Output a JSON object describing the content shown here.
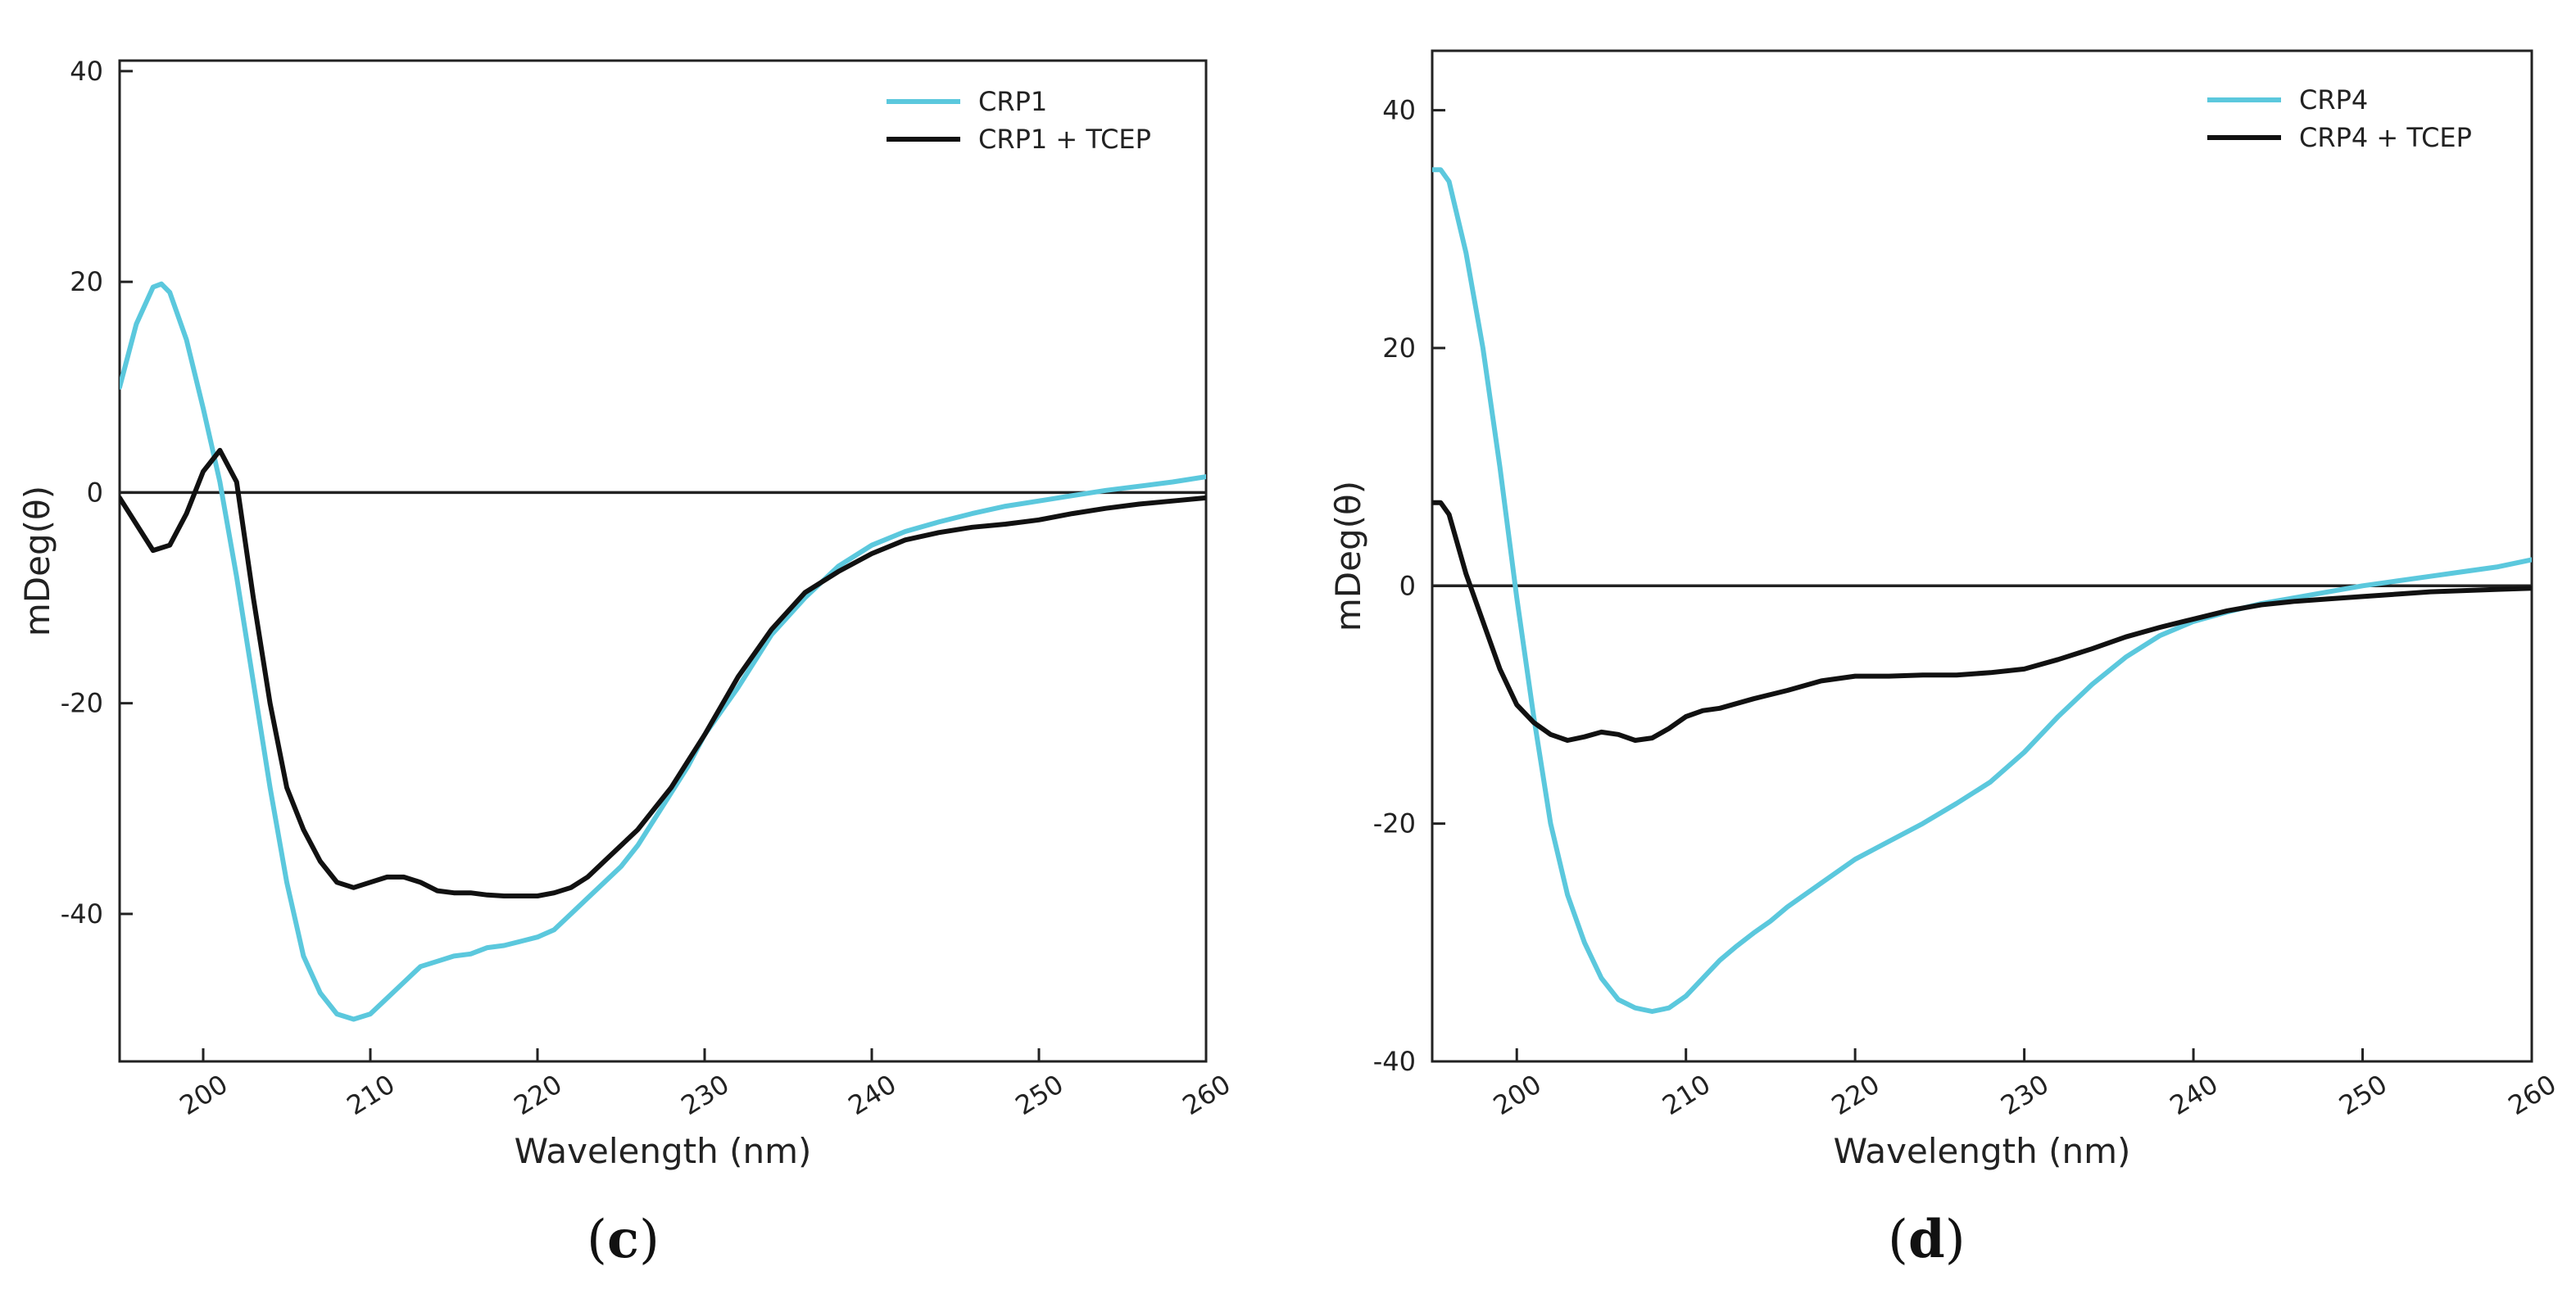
{
  "colors": {
    "line_blue": "#5BC8DD",
    "line_black": "#111111",
    "axis": "#222222"
  },
  "panels": [
    {
      "letter": "c",
      "letter_display_open": "(",
      "letter_display_close": ")"
    },
    {
      "letter": "d",
      "letter_display_open": "(",
      "letter_display_close": ")"
    }
  ],
  "chart_data": [
    {
      "type": "line",
      "panel": "c",
      "title": "",
      "xlabel": "Wavelength (nm)",
      "ylabel": "mDeg(θ)",
      "xlim": [
        195,
        260
      ],
      "ylim": [
        -54,
        41
      ],
      "xticks": [
        200,
        210,
        220,
        230,
        240,
        250,
        260
      ],
      "yticks": [
        40,
        20,
        0,
        -20,
        -40
      ],
      "zero_line": true,
      "legend": "top-right",
      "series": [
        {
          "name": "CRP1",
          "color": "#5BC8DD",
          "x": [
            195,
            196,
            197,
            197.5,
            198,
            199,
            200,
            201,
            202,
            203,
            204,
            205,
            206,
            207,
            208,
            209,
            210,
            211,
            212,
            213,
            214,
            215,
            216,
            217,
            218,
            219,
            220,
            221,
            222,
            223,
            224,
            225,
            226,
            227,
            228,
            229,
            230,
            232,
            234,
            236,
            238,
            240,
            242,
            244,
            246,
            248,
            250,
            252,
            254,
            256,
            258,
            260
          ],
          "y": [
            10,
            16,
            19.5,
            19.8,
            19,
            14.5,
            8,
            1,
            -8,
            -18,
            -28,
            -37,
            -44,
            -47.5,
            -49.5,
            -50,
            -49.5,
            -48,
            -46.5,
            -45,
            -44.5,
            -44,
            -43.8,
            -43.2,
            -43,
            -42.6,
            -42.2,
            -41.5,
            -40,
            -38.5,
            -37,
            -35.5,
            -33.5,
            -31,
            -28.5,
            -26,
            -23,
            -18.5,
            -13.5,
            -10,
            -7,
            -5,
            -3.7,
            -2.8,
            -2,
            -1.3,
            -0.8,
            -0.3,
            0.2,
            0.6,
            1.0,
            1.5
          ]
        },
        {
          "name": "CRP1 + TCEP",
          "color": "#111111",
          "x": [
            195,
            196,
            197,
            198,
            199,
            200,
            201,
            202,
            203,
            204,
            205,
            206,
            207,
            208,
            209,
            210,
            211,
            212,
            213,
            214,
            215,
            216,
            217,
            218,
            219,
            220,
            221,
            222,
            223,
            224,
            225,
            226,
            227,
            228,
            229,
            230,
            232,
            234,
            236,
            238,
            240,
            242,
            244,
            246,
            248,
            250,
            252,
            254,
            256,
            258,
            260
          ],
          "y": [
            -0.5,
            -3,
            -5.5,
            -5,
            -2,
            2,
            4,
            1,
            -10,
            -20,
            -28,
            -32,
            -35,
            -37,
            -37.5,
            -37,
            -36.5,
            -36.5,
            -37,
            -37.8,
            -38,
            -38,
            -38.2,
            -38.3,
            -38.3,
            -38.3,
            -38,
            -37.5,
            -36.5,
            -35,
            -33.5,
            -32,
            -30,
            -28,
            -25.5,
            -23,
            -17.5,
            -13,
            -9.5,
            -7.5,
            -5.8,
            -4.5,
            -3.8,
            -3.3,
            -3,
            -2.6,
            -2,
            -1.5,
            -1.1,
            -0.8,
            -0.5
          ]
        }
      ]
    },
    {
      "type": "line",
      "panel": "d",
      "title": "",
      "xlabel": "Wavelength (nm)",
      "ylabel": "mDeg(θ)",
      "xlim": [
        195,
        260
      ],
      "ylim": [
        -40,
        45
      ],
      "xticks": [
        200,
        210,
        220,
        230,
        240,
        250,
        260
      ],
      "yticks": [
        40,
        20,
        0,
        -20,
        -40
      ],
      "zero_line": true,
      "legend": "top-right",
      "series": [
        {
          "name": "CRP4",
          "color": "#5BC8DD",
          "x": [
            195,
            195.5,
            196,
            197,
            198,
            199,
            200,
            201,
            202,
            203,
            204,
            205,
            206,
            207,
            208,
            209,
            210,
            211,
            212,
            213,
            214,
            215,
            216,
            218,
            220,
            222,
            224,
            226,
            228,
            230,
            232,
            234,
            236,
            238,
            240,
            242,
            244,
            246,
            248,
            250,
            252,
            254,
            256,
            258,
            260
          ],
          "y": [
            35,
            35,
            34,
            28,
            20,
            10,
            -1,
            -11,
            -20,
            -26,
            -30,
            -33,
            -34.8,
            -35.5,
            -35.8,
            -35.5,
            -34.5,
            -33,
            -31.5,
            -30.3,
            -29.2,
            -28.2,
            -27,
            -25,
            -23,
            -21.5,
            -20,
            -18.3,
            -16.5,
            -14,
            -11,
            -8.3,
            -6,
            -4.2,
            -3,
            -2.2,
            -1.5,
            -1,
            -0.5,
            0,
            0.4,
            0.8,
            1.2,
            1.6,
            2.2
          ]
        },
        {
          "name": "CRP4 + TCEP",
          "color": "#111111",
          "x": [
            195,
            195.5,
            196,
            197,
            198,
            199,
            200,
            201,
            202,
            203,
            204,
            205,
            206,
            207,
            208,
            209,
            210,
            211,
            212,
            214,
            216,
            218,
            220,
            222,
            224,
            226,
            228,
            230,
            232,
            234,
            236,
            238,
            240,
            242,
            244,
            246,
            248,
            250,
            252,
            254,
            256,
            258,
            260
          ],
          "y": [
            7,
            7,
            6,
            1,
            -3,
            -7,
            -10,
            -11.5,
            -12.5,
            -13,
            -12.7,
            -12.3,
            -12.5,
            -13,
            -12.8,
            -12,
            -11,
            -10.5,
            -10.3,
            -9.5,
            -8.8,
            -8,
            -7.6,
            -7.6,
            -7.5,
            -7.5,
            -7.3,
            -7,
            -6.2,
            -5.3,
            -4.3,
            -3.5,
            -2.8,
            -2.1,
            -1.6,
            -1.3,
            -1.1,
            -0.9,
            -0.7,
            -0.5,
            -0.4,
            -0.3,
            -0.2
          ]
        }
      ]
    }
  ]
}
